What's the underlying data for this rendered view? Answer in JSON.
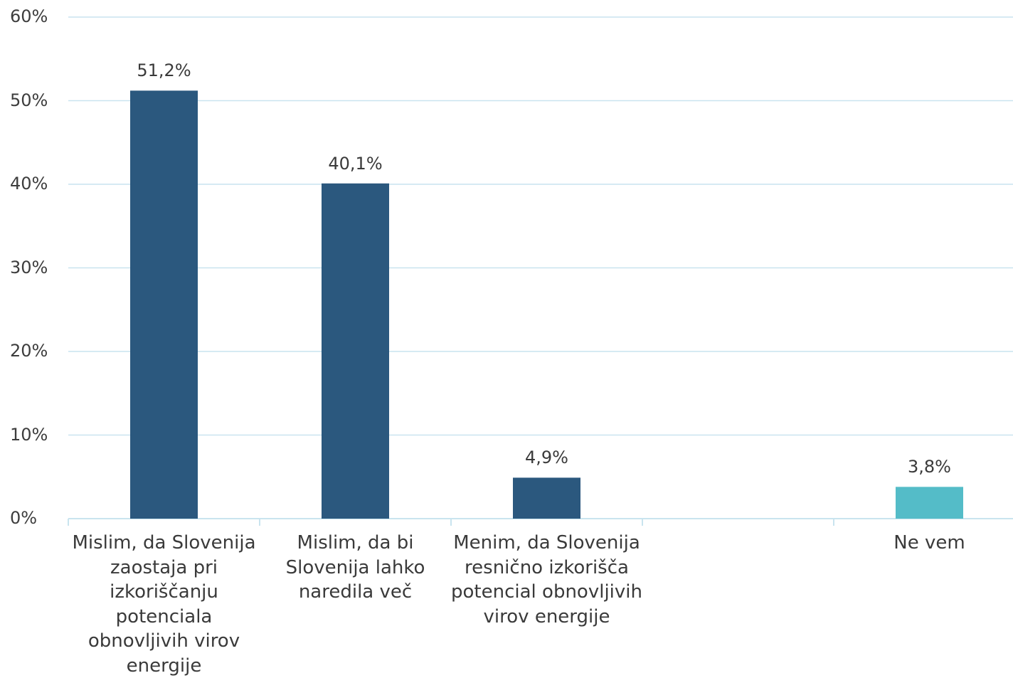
{
  "chart_data": {
    "type": "bar",
    "categories": [
      "Mislim, da Slovenija zaostaja pri izkoriščanju potenciala obnovljivih virov energije",
      "Mislim, da bi Slovenija lahko naredila več",
      "Menim, da Slovenija resnično izkorišča potencial obnovljivih virov energije",
      "",
      "Ne vem"
    ],
    "values": [
      51.2,
      40.1,
      4.9,
      null,
      3.8
    ],
    "data_labels": [
      "51,2%",
      "40,1%",
      "4,9%",
      "",
      "3,8%"
    ],
    "bar_colors": [
      "#2b587e",
      "#2b587e",
      "#2b587e",
      "#2b587e",
      "#54bcc8"
    ],
    "ylim": [
      0,
      60
    ],
    "yticks": [
      "0%",
      "10%",
      "20%",
      "30%",
      "40%",
      "50%",
      "60%"
    ],
    "grid": true,
    "gridline_color": "#c9e4ef",
    "axis_color": "#c9e4ef",
    "title": "",
    "xlabel": "",
    "ylabel": ""
  }
}
